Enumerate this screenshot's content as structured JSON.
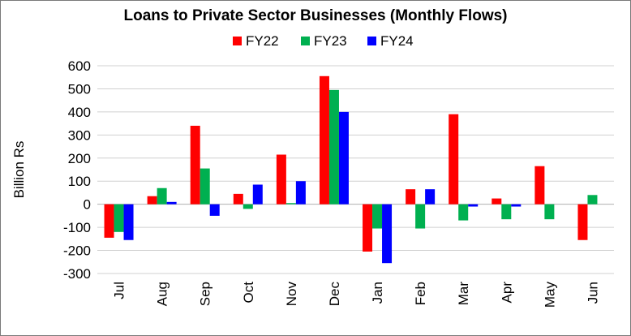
{
  "chart_data": {
    "type": "bar",
    "title": "Loans to Private Sector Businesses (Monthly Flows)",
    "xlabel": "",
    "ylabel": "Billion Rs",
    "ylim": [
      -300,
      600
    ],
    "yticks": [
      600,
      500,
      400,
      300,
      200,
      100,
      0,
      -100,
      -200,
      -300
    ],
    "grid": true,
    "legend": "top-center",
    "categories": [
      "Jul",
      "Aug",
      "Sep",
      "Oct",
      "Nov",
      "Dec",
      "Jan",
      "Feb",
      "Mar",
      "Apr",
      "May",
      "Jun"
    ],
    "series": [
      {
        "name": "FY22",
        "color": "#ff0000",
        "values": [
          -145,
          35,
          340,
          45,
          215,
          555,
          -205,
          65,
          390,
          25,
          165,
          -155
        ]
      },
      {
        "name": "FY23",
        "color": "#00b050",
        "values": [
          -120,
          70,
          155,
          -20,
          5,
          495,
          -105,
          -105,
          -70,
          -65,
          -65,
          40
        ]
      },
      {
        "name": "FY24",
        "color": "#0000ff",
        "values": [
          -155,
          10,
          -50,
          85,
          100,
          400,
          -255,
          65,
          -10,
          -10,
          null,
          null
        ]
      }
    ]
  }
}
